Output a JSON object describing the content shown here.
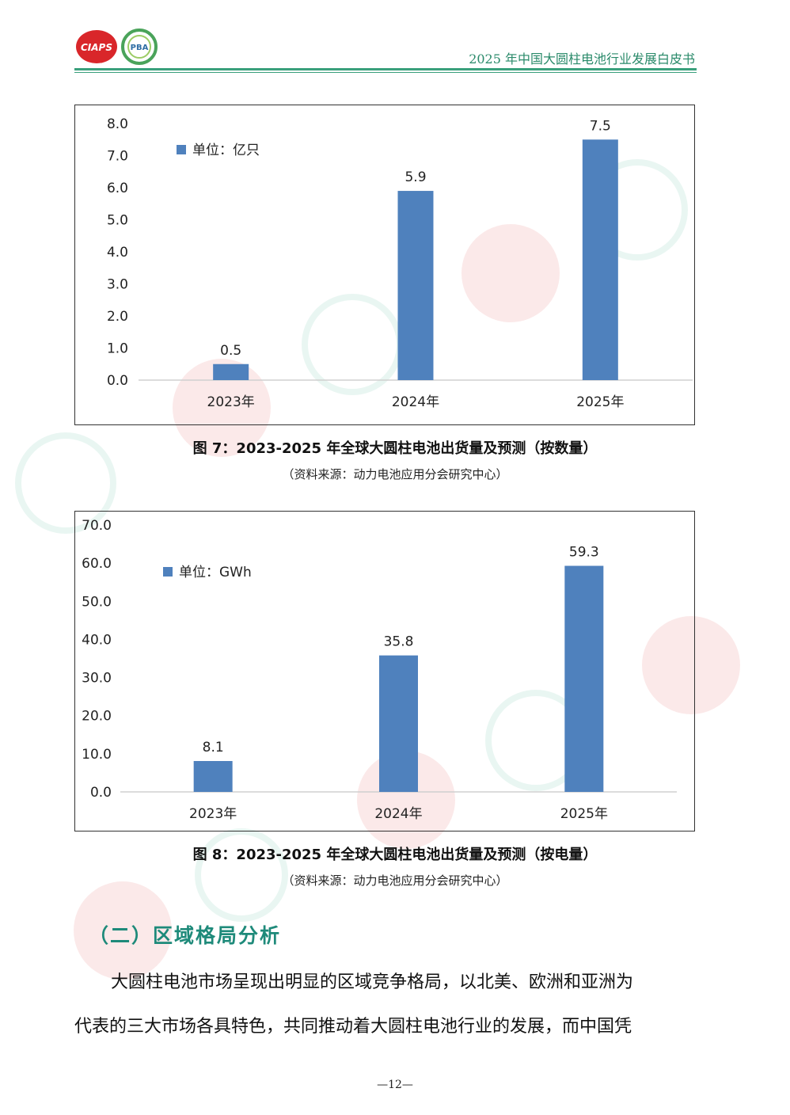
{
  "header": {
    "title": "2025 年中国大圆柱电池行业发展白皮书",
    "logo1_text": "CIAPS",
    "logo2_text": "PBA"
  },
  "charts": [
    {
      "caption": "图 7：2023-2025 年全球大圆柱电池出货量及预测（按数量）",
      "source": "（资料来源：动力电池应用分会研究中心）"
    },
    {
      "caption": "图 8：2023-2025 年全球大圆柱电池出货量及预测（按电量）",
      "source": "（资料来源：动力电池应用分会研究中心）"
    }
  ],
  "chart_data": [
    {
      "type": "bar",
      "categories": [
        "2023年",
        "2024年",
        "2025年"
      ],
      "series": [
        {
          "name": "单位：亿只",
          "values": [
            0.5,
            5.9,
            7.5
          ]
        }
      ],
      "data_labels": [
        "0.5",
        "5.9",
        "7.5"
      ],
      "yticks": [
        "0.0",
        "1.0",
        "2.0",
        "3.0",
        "4.0",
        "5.0",
        "6.0",
        "7.0",
        "8.0"
      ],
      "ylim": [
        0,
        8
      ],
      "color": "#4f81bd",
      "legend": "top-left"
    },
    {
      "type": "bar",
      "categories": [
        "2023年",
        "2024年",
        "2025年"
      ],
      "series": [
        {
          "name": "单位：GWh",
          "values": [
            8.1,
            35.8,
            59.3
          ]
        }
      ],
      "data_labels": [
        "8.1",
        "35.8",
        "59.3"
      ],
      "yticks": [
        "0.0",
        "10.0",
        "20.0",
        "30.0",
        "40.0",
        "50.0",
        "60.0",
        "70.0"
      ],
      "ylim": [
        0,
        70
      ],
      "color": "#4f81bd",
      "legend": "top-left"
    }
  ],
  "section": {
    "title": "（二）区域格局分析",
    "paragraph_lines": [
      "大圆柱电池市场呈现出明显的区域竞争格局，以北美、欧洲和亚洲为",
      "代表的三大市场各具特色，共同推动着大圆柱电池行业的发展，而中国凭"
    ]
  },
  "page_number": "—12—"
}
